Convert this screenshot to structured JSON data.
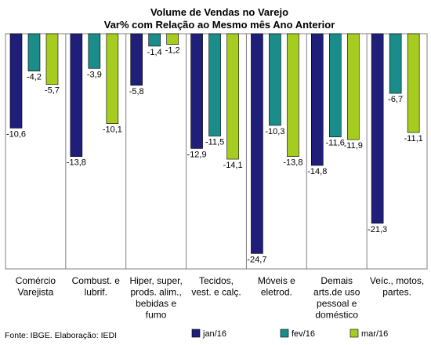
{
  "chart_data": {
    "type": "bar",
    "title": "Volume de Vendas no Varejo",
    "subtitle": "Var% com Relação ao Mesmo mês Ano Anterior",
    "categories": [
      "Comércio Varejista",
      "Combust. e lubrif.",
      "Hiper, super, prods. alim., bebidas e fumo",
      "Tecidos, vest. e calç.",
      "Móveis e eletrod.",
      "Demais arts.de uso pessoal e doméstico",
      "Veíc., motos, partes."
    ],
    "category_lines": [
      [
        "Comércio",
        "Varejista"
      ],
      [
        "Combust. e",
        "lubrif."
      ],
      [
        "Hiper, super,",
        "prods. alim.,",
        "bebidas e",
        "fumo"
      ],
      [
        "Tecidos,",
        "vest. e calç."
      ],
      [
        "Móveis e",
        "eletrod."
      ],
      [
        "Demais",
        "arts.de uso",
        "pessoal e",
        "doméstico"
      ],
      [
        "Veíc., motos,",
        "partes."
      ]
    ],
    "series": [
      {
        "name": "jan/16",
        "color": "#1F1F7A",
        "values": [
          -10.6,
          -13.8,
          -5.8,
          -12.9,
          -24.7,
          -14.8,
          -21.3
        ],
        "labels": [
          "-10,6",
          "-13,8",
          "-5,8",
          "-12,9",
          "-24,7",
          "-14,8",
          "-21,3"
        ]
      },
      {
        "name": "fev/16",
        "color": "#1A8C8A",
        "values": [
          -4.2,
          -3.9,
          -1.4,
          -11.5,
          -10.3,
          -11.6,
          -6.7
        ],
        "labels": [
          "-4,2",
          "-3,9",
          "-1,4",
          "-11,5",
          "-10,3",
          "-11,6",
          "-6,7"
        ]
      },
      {
        "name": "mar/16",
        "color": "#A6CC1F",
        "values": [
          -5.7,
          -10.1,
          -1.2,
          -14.1,
          -13.8,
          -11.9,
          -11.1
        ],
        "labels": [
          "-5,7",
          "-10,1",
          "-1,2",
          "-14,1",
          "-13,8",
          "-11,9",
          "-11,1"
        ]
      }
    ],
    "ylim": [
      -27,
      0
    ],
    "grid": false,
    "legend_position": "bottom-right"
  },
  "source": "Fonte: IBGE. Elaboração: IEDI"
}
